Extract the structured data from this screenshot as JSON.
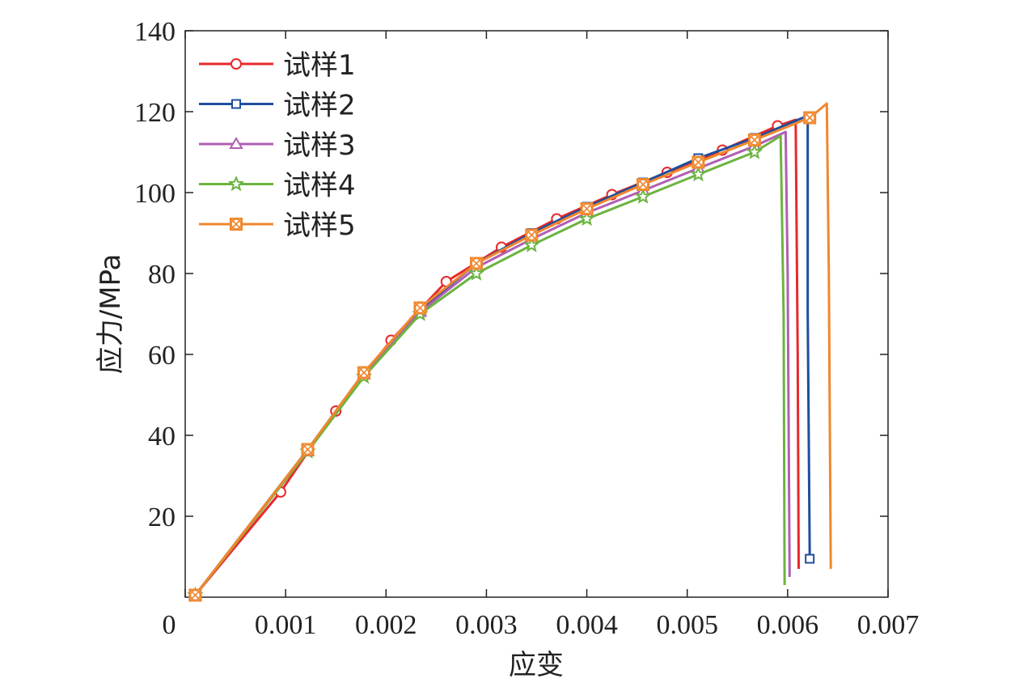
{
  "chart_data": {
    "type": "line",
    "xlabel": "应变",
    "ylabel": "应力/MPa",
    "xlim": [
      0,
      0.007
    ],
    "ylim": [
      0,
      140
    ],
    "x_ticks": [
      "0",
      "0.001",
      "0.002",
      "0.003",
      "0.004",
      "0.005",
      "0.006",
      "0.007"
    ],
    "y_ticks": [
      "20",
      "40",
      "60",
      "80",
      "100",
      "120",
      "140"
    ],
    "grid": false,
    "legend_position": "top-left",
    "series": [
      {
        "name": "试样1",
        "color": "#e8282b",
        "marker": "circle",
        "points": [
          [
            0.0001,
            0.5
          ],
          [
            0.00095,
            26
          ],
          [
            0.0015,
            46
          ],
          [
            0.00205,
            63.5
          ],
          [
            0.0026,
            78
          ],
          [
            0.00315,
            86.5
          ],
          [
            0.0037,
            93.5
          ],
          [
            0.00425,
            99.5
          ],
          [
            0.0048,
            105
          ],
          [
            0.00535,
            110.5
          ],
          [
            0.0059,
            116.5
          ],
          [
            0.00608,
            118
          ],
          [
            0.0061,
            60
          ],
          [
            0.00611,
            7
          ]
        ],
        "marker_points": [
          [
            0.0001,
            0.5
          ],
          [
            0.00095,
            26
          ],
          [
            0.0015,
            46
          ],
          [
            0.00205,
            63.5
          ],
          [
            0.0026,
            78
          ],
          [
            0.00315,
            86.5
          ],
          [
            0.0037,
            93.5
          ],
          [
            0.00425,
            99.5
          ],
          [
            0.0048,
            105
          ],
          [
            0.00535,
            110.5
          ],
          [
            0.0059,
            116.5
          ]
        ]
      },
      {
        "name": "试样2",
        "color": "#1f4e9c",
        "marker": "square",
        "points": [
          [
            0.0001,
            0.5
          ],
          [
            0.00122,
            36.5
          ],
          [
            0.00178,
            55.5
          ],
          [
            0.00234,
            71
          ],
          [
            0.0029,
            82.5
          ],
          [
            0.00345,
            90
          ],
          [
            0.004,
            96.5
          ],
          [
            0.00456,
            102.5
          ],
          [
            0.00511,
            108.5
          ],
          [
            0.00567,
            113.5
          ],
          [
            0.0062,
            119
          ],
          [
            0.0062,
            70
          ],
          [
            0.00622,
            9.5
          ]
        ],
        "marker_points": [
          [
            0.0001,
            0.5
          ],
          [
            0.00122,
            36.5
          ],
          [
            0.00178,
            55.5
          ],
          [
            0.00234,
            71
          ],
          [
            0.0029,
            82.5
          ],
          [
            0.00345,
            90
          ],
          [
            0.004,
            96.5
          ],
          [
            0.00456,
            102.5
          ],
          [
            0.00511,
            108.5
          ],
          [
            0.00567,
            113.5
          ],
          [
            0.00622,
            9.5
          ]
        ]
      },
      {
        "name": "试样3",
        "color": "#b05fb3",
        "marker": "triangle",
        "points": [
          [
            0.0001,
            0.5
          ],
          [
            0.00122,
            36
          ],
          [
            0.00178,
            55
          ],
          [
            0.00234,
            70.5
          ],
          [
            0.0029,
            81.5
          ],
          [
            0.00345,
            88.5
          ],
          [
            0.004,
            95
          ],
          [
            0.00456,
            100.5
          ],
          [
            0.00511,
            106
          ],
          [
            0.00567,
            111.5
          ],
          [
            0.00598,
            115
          ],
          [
            0.006,
            80
          ],
          [
            0.00602,
            5
          ]
        ],
        "marker_points": [
          [
            0.0001,
            0.5
          ],
          [
            0.00122,
            36
          ],
          [
            0.00178,
            55
          ],
          [
            0.00234,
            70.5
          ],
          [
            0.0029,
            81.5
          ],
          [
            0.00345,
            88.5
          ],
          [
            0.004,
            95
          ],
          [
            0.00456,
            100.5
          ],
          [
            0.00511,
            106
          ],
          [
            0.00567,
            111.5
          ]
        ]
      },
      {
        "name": "试样4",
        "color": "#6bb43f",
        "marker": "star",
        "points": [
          [
            0.0001,
            0.5
          ],
          [
            0.00122,
            36
          ],
          [
            0.00178,
            54.5
          ],
          [
            0.00234,
            70
          ],
          [
            0.0029,
            80
          ],
          [
            0.00345,
            87
          ],
          [
            0.004,
            93.5
          ],
          [
            0.00456,
            99
          ],
          [
            0.00511,
            104.5
          ],
          [
            0.00567,
            110
          ],
          [
            0.00593,
            114
          ],
          [
            0.00596,
            70
          ],
          [
            0.00597,
            3
          ]
        ],
        "marker_points": [
          [
            0.0001,
            0.5
          ],
          [
            0.00122,
            36
          ],
          [
            0.00178,
            54.5
          ],
          [
            0.00234,
            70
          ],
          [
            0.0029,
            80
          ],
          [
            0.00345,
            87
          ],
          [
            0.004,
            93.5
          ],
          [
            0.00456,
            99
          ],
          [
            0.00511,
            104.5
          ],
          [
            0.00567,
            110
          ]
        ]
      },
      {
        "name": "试样5",
        "color": "#f0872d",
        "marker": "crossed-square",
        "points": [
          [
            0.0001,
            0.5
          ],
          [
            0.00122,
            36.5
          ],
          [
            0.00178,
            55.5
          ],
          [
            0.00234,
            71.5
          ],
          [
            0.0029,
            82.5
          ],
          [
            0.00345,
            89.5
          ],
          [
            0.004,
            96
          ],
          [
            0.00456,
            102
          ],
          [
            0.00511,
            107.5
          ],
          [
            0.00567,
            113
          ],
          [
            0.00622,
            118.5
          ],
          [
            0.00639,
            122
          ],
          [
            0.00641,
            80
          ],
          [
            0.00643,
            7
          ]
        ],
        "marker_points": [
          [
            0.0001,
            0.5
          ],
          [
            0.00122,
            36.5
          ],
          [
            0.00178,
            55.5
          ],
          [
            0.00234,
            71.5
          ],
          [
            0.0029,
            82.5
          ],
          [
            0.00345,
            89.5
          ],
          [
            0.004,
            96
          ],
          [
            0.00456,
            102
          ],
          [
            0.00511,
            107.5
          ],
          [
            0.00567,
            113
          ],
          [
            0.00622,
            118.5
          ]
        ]
      }
    ]
  }
}
